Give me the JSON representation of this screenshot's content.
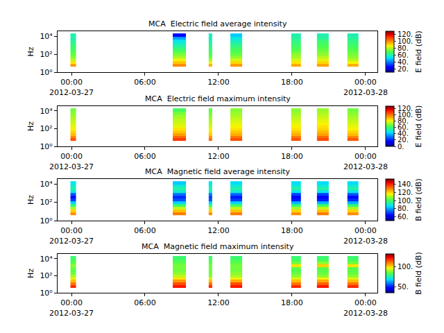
{
  "chart_data": [
    {
      "type": "heatmap",
      "title": "MCA  Electric field average intensity",
      "ylabel": "Hz",
      "log": "y",
      "x": [
        [
          "2012-03-26 23:55",
          "2012-03-27 00:23"
        ],
        [
          "2012-03-27 08:16",
          "2012-03-27 09:20"
        ],
        [
          "2012-03-27 11:12",
          "2012-03-27 11:30"
        ],
        [
          "2012-03-27 12:58",
          "2012-03-27 13:55"
        ],
        [
          "2012-03-27 17:56",
          "2012-03-27 18:44"
        ],
        [
          "2012-03-27 20:02",
          "2012-03-27 21:00"
        ],
        [
          "2012-03-27 22:31",
          "2012-03-27 23:26"
        ]
      ],
      "y": [
        4,
        8,
        16,
        32,
        64,
        128,
        256,
        512,
        1024,
        2048,
        4096,
        8192,
        20000
      ],
      "cells": [
        [
          98,
          100,
          95,
          98,
          96,
          97,
          95
        ],
        [
          88,
          92,
          85,
          90,
          88,
          90,
          86
        ],
        [
          80,
          85,
          78,
          82,
          82,
          84,
          80
        ],
        [
          75,
          78,
          72,
          76,
          78,
          80,
          76
        ],
        [
          72,
          74,
          70,
          72,
          76,
          76,
          74
        ],
        [
          70,
          70,
          68,
          70,
          72,
          74,
          72
        ],
        [
          68,
          66,
          66,
          68,
          70,
          72,
          70
        ],
        [
          66,
          62,
          64,
          65,
          68,
          70,
          68
        ],
        [
          64,
          58,
          62,
          62,
          66,
          68,
          66
        ],
        [
          62,
          54,
          60,
          58,
          64,
          66,
          64
        ],
        [
          60,
          45,
          58,
          55,
          62,
          62,
          62
        ],
        [
          60,
          25,
          58,
          50,
          60,
          60,
          60
        ]
      ],
      "xlim": [
        "2012-03-26 22:52",
        "2012-03-28 00:58"
      ],
      "xticks": [
        {
          "value": "2012-03-27 00:00",
          "label": "00:00\n2012-03-27"
        },
        {
          "value": "2012-03-27 06:00",
          "label": "06:00"
        },
        {
          "value": "2012-03-27 12:00",
          "label": "12:00"
        },
        {
          "value": "2012-03-27 18:00",
          "label": "18:00"
        },
        {
          "value": "2012-03-28 00:00",
          "label": "00:00\n2012-03-28"
        }
      ],
      "ylim": [
        1,
        35000
      ],
      "yticks": [
        {
          "value": 1,
          "label": "10⁰"
        },
        {
          "value": 100,
          "label": "10²"
        },
        {
          "value": 10000,
          "label": "10⁴"
        }
      ],
      "colorbar": {
        "label": "E field (dB)",
        "range": [
          12,
          128
        ],
        "ticks": [
          {
            "value": 20,
            "label": "20."
          },
          {
            "value": 40,
            "label": "40."
          },
          {
            "value": 60,
            "label": "60."
          },
          {
            "value": 80,
            "label": "80."
          },
          {
            "value": 100,
            "label": "100."
          },
          {
            "value": 120,
            "label": "120."
          }
        ]
      }
    },
    {
      "type": "heatmap",
      "title": "MCA  Electric field maximum intensity",
      "ylabel": "Hz",
      "log": "y",
      "x": [
        [
          "2012-03-26 23:55",
          "2012-03-27 00:23"
        ],
        [
          "2012-03-27 08:16",
          "2012-03-27 09:20"
        ],
        [
          "2012-03-27 11:12",
          "2012-03-27 11:30"
        ],
        [
          "2012-03-27 12:58",
          "2012-03-27 13:55"
        ],
        [
          "2012-03-27 17:56",
          "2012-03-27 18:44"
        ],
        [
          "2012-03-27 20:02",
          "2012-03-27 21:00"
        ],
        [
          "2012-03-27 22:31",
          "2012-03-27 23:26"
        ]
      ],
      "y": [
        4,
        8,
        16,
        32,
        64,
        128,
        256,
        512,
        1024,
        2048,
        4096,
        8192,
        20000
      ],
      "cells": [
        [
          105,
          108,
          100,
          105,
          104,
          106,
          104
        ],
        [
          98,
          102,
          95,
          100,
          100,
          102,
          98
        ],
        [
          90,
          94,
          88,
          92,
          92,
          94,
          90
        ],
        [
          86,
          88,
          84,
          88,
          88,
          90,
          86
        ],
        [
          82,
          84,
          80,
          84,
          84,
          86,
          82
        ],
        [
          80,
          80,
          78,
          82,
          82,
          84,
          80
        ],
        [
          78,
          78,
          76,
          80,
          80,
          82,
          78
        ],
        [
          76,
          76,
          74,
          78,
          78,
          80,
          76
        ],
        [
          74,
          74,
          72,
          76,
          76,
          78,
          74
        ],
        [
          72,
          72,
          70,
          74,
          74,
          76,
          72
        ],
        [
          70,
          68,
          68,
          72,
          72,
          74,
          70
        ],
        [
          68,
          62,
          66,
          70,
          70,
          72,
          68
        ]
      ],
      "xlim": [
        "2012-03-26 22:52",
        "2012-03-28 00:58"
      ],
      "xticks": [
        {
          "value": "2012-03-27 00:00",
          "label": "00:00\n2012-03-27"
        },
        {
          "value": "2012-03-27 06:00",
          "label": "06:00"
        },
        {
          "value": "2012-03-27 12:00",
          "label": "12:00"
        },
        {
          "value": "2012-03-27 18:00",
          "label": "18:00"
        },
        {
          "value": "2012-03-28 00:00",
          "label": "00:00\n2012-03-28"
        }
      ],
      "ylim": [
        1,
        35000
      ],
      "yticks": [
        {
          "value": 1,
          "label": "10⁰"
        },
        {
          "value": 100,
          "label": "10²"
        },
        {
          "value": 10000,
          "label": "10⁴"
        }
      ],
      "colorbar": {
        "label": "E field (dB)",
        "range": [
          0,
          128
        ],
        "ticks": [
          {
            "value": 0,
            "label": "0."
          },
          {
            "value": 20,
            "label": "20."
          },
          {
            "value": 40,
            "label": "40."
          },
          {
            "value": 60,
            "label": "60."
          },
          {
            "value": 80,
            "label": "80."
          },
          {
            "value": 100,
            "label": "100."
          },
          {
            "value": 120,
            "label": "120."
          }
        ]
      }
    },
    {
      "type": "heatmap",
      "title": "MCA  Magnetic field average intensity",
      "ylabel": "Hz",
      "log": "y",
      "x": [
        [
          "2012-03-26 23:55",
          "2012-03-27 00:23"
        ],
        [
          "2012-03-27 08:16",
          "2012-03-27 09:20"
        ],
        [
          "2012-03-27 11:12",
          "2012-03-27 11:30"
        ],
        [
          "2012-03-27 12:58",
          "2012-03-27 13:55"
        ],
        [
          "2012-03-27 17:56",
          "2012-03-27 18:44"
        ],
        [
          "2012-03-27 20:02",
          "2012-03-27 21:00"
        ],
        [
          "2012-03-27 22:31",
          "2012-03-27 23:26"
        ]
      ],
      "y": [
        4,
        8,
        16,
        32,
        64,
        128,
        256,
        512,
        1024,
        2048,
        4096,
        8192,
        20000
      ],
      "cells": [
        [
          128,
          130,
          128,
          130,
          128,
          130,
          128
        ],
        [
          120,
          122,
          120,
          122,
          120,
          122,
          120
        ],
        [
          110,
          112,
          110,
          112,
          110,
          112,
          110
        ],
        [
          98,
          100,
          98,
          100,
          98,
          100,
          98
        ],
        [
          85,
          85,
          85,
          85,
          82,
          82,
          82
        ],
        [
          70,
          72,
          72,
          70,
          66,
          66,
          68
        ],
        [
          65,
          68,
          70,
          66,
          62,
          62,
          64
        ],
        [
          72,
          75,
          76,
          74,
          70,
          70,
          72
        ],
        [
          88,
          90,
          90,
          90,
          88,
          88,
          88
        ],
        [
          94,
          94,
          94,
          94,
          94,
          94,
          94
        ],
        [
          90,
          90,
          90,
          90,
          90,
          90,
          90
        ],
        [
          88,
          84,
          88,
          86,
          86,
          86,
          86
        ]
      ],
      "xlim": [
        "2012-03-26 22:52",
        "2012-03-28 00:58"
      ],
      "xticks": [
        {
          "value": "2012-03-27 00:00",
          "label": "00:00\n2012-03-27"
        },
        {
          "value": "2012-03-27 06:00",
          "label": "06:00"
        },
        {
          "value": "2012-03-27 12:00",
          "label": "12:00"
        },
        {
          "value": "2012-03-27 18:00",
          "label": "18:00"
        },
        {
          "value": "2012-03-28 00:00",
          "label": "00:00\n2012-03-28"
        }
      ],
      "ylim": [
        1,
        35000
      ],
      "yticks": [
        {
          "value": 1,
          "label": "10⁰"
        },
        {
          "value": 100,
          "label": "10²"
        },
        {
          "value": 10000,
          "label": "10⁴"
        }
      ],
      "colorbar": {
        "label": "B field (dB)",
        "range": [
          51,
          153
        ],
        "ticks": [
          {
            "value": 60,
            "label": "60."
          },
          {
            "value": 80,
            "label": "80."
          },
          {
            "value": 100,
            "label": "100."
          },
          {
            "value": 120,
            "label": "120."
          },
          {
            "value": 140,
            "label": "140."
          }
        ]
      }
    },
    {
      "type": "heatmap",
      "title": "MCA  Magnetic field maximum intensity",
      "ylabel": "Hz",
      "log": "y",
      "x": [
        [
          "2012-03-26 23:55",
          "2012-03-27 00:23"
        ],
        [
          "2012-03-27 08:16",
          "2012-03-27 09:20"
        ],
        [
          "2012-03-27 11:12",
          "2012-03-27 11:30"
        ],
        [
          "2012-03-27 12:58",
          "2012-03-27 13:55"
        ],
        [
          "2012-03-27 17:56",
          "2012-03-27 18:44"
        ],
        [
          "2012-03-27 20:02",
          "2012-03-27 21:00"
        ],
        [
          "2012-03-27 22:31",
          "2012-03-27 23:26"
        ]
      ],
      "y": [
        4,
        8,
        16,
        32,
        64,
        128,
        256,
        512,
        1024,
        2048,
        4096,
        8192,
        20000
      ],
      "cells": [
        [
          118,
          120,
          118,
          120,
          118,
          120,
          118
        ],
        [
          110,
          114,
          110,
          114,
          110,
          112,
          110
        ],
        [
          102,
          106,
          102,
          104,
          102,
          104,
          102
        ],
        [
          95,
          98,
          94,
          96,
          94,
          96,
          94
        ],
        [
          90,
          92,
          88,
          90,
          88,
          88,
          88
        ],
        [
          86,
          88,
          86,
          88,
          85,
          85,
          85
        ],
        [
          84,
          86,
          85,
          86,
          83,
          84,
          84
        ],
        [
          85,
          86,
          86,
          86,
          84,
          84,
          84
        ],
        [
          88,
          86,
          86,
          86,
          98,
          100,
          98
        ],
        [
          84,
          84,
          84,
          84,
          86,
          88,
          86
        ],
        [
          82,
          82,
          82,
          82,
          82,
          82,
          82
        ],
        [
          80,
          80,
          80,
          80,
          80,
          80,
          80
        ]
      ],
      "xlim": [
        "2012-03-26 22:52",
        "2012-03-28 00:58"
      ],
      "xticks": [
        {
          "value": "2012-03-27 00:00",
          "label": "00:00\n2012-03-27"
        },
        {
          "value": "2012-03-27 06:00",
          "label": "06:00"
        },
        {
          "value": "2012-03-27 12:00",
          "label": "12:00"
        },
        {
          "value": "2012-03-27 18:00",
          "label": "18:00"
        },
        {
          "value": "2012-03-28 00:00",
          "label": "00:00\n2012-03-28"
        }
      ],
      "ylim": [
        1,
        35000
      ],
      "yticks": [
        {
          "value": 1,
          "label": "10⁰"
        },
        {
          "value": 100,
          "label": "10²"
        },
        {
          "value": 10000,
          "label": "10⁴"
        }
      ],
      "colorbar": {
        "label": "B field (dB)",
        "range": [
          35,
          131
        ],
        "ticks": [
          {
            "value": 50,
            "label": "50."
          },
          {
            "value": 100,
            "label": "100."
          }
        ]
      }
    }
  ]
}
